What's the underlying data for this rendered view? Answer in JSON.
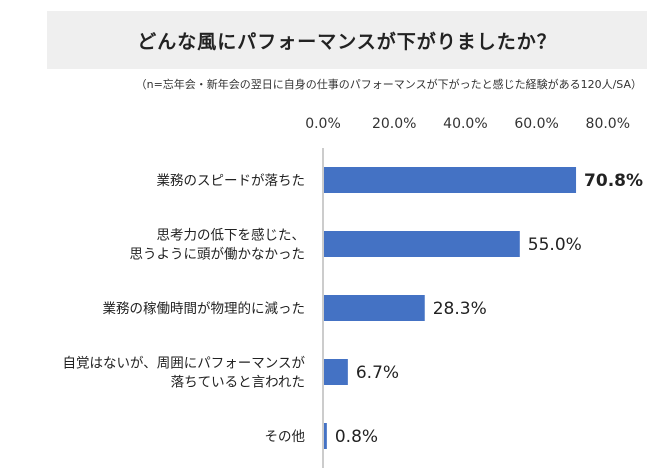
{
  "chart_data": {
    "type": "bar",
    "orientation": "horizontal",
    "title": "どんな風にパフォーマンスが下がりましたか？",
    "subtitle": "（n=忘年会・新年会の翌日に自身の仕事のパフォーマンスが下がったと感じた経験がある120人/SA）",
    "xlim": [
      0,
      80
    ],
    "xticks": [
      "0.0%",
      "20.0%",
      "40.0%",
      "60.0%",
      "80.0%"
    ],
    "categories": [
      [
        "業務のスピードが落ちた"
      ],
      [
        "思考力の低下を感じた、",
        "思うように頭が働かなかった"
      ],
      [
        "業務の稼働時間が物理的に減った"
      ],
      [
        "自覚はないが、周囲にパフォーマンスが",
        "落ちていると言われた"
      ],
      [
        "その他"
      ]
    ],
    "values": [
      70.8,
      55.0,
      28.3,
      6.7,
      0.8
    ],
    "value_labels": [
      "70.8%",
      "55.0%",
      "28.3%",
      "6.7%",
      "0.8%"
    ],
    "highlight_index": 0,
    "bar_color": "#4472c4",
    "grid": false,
    "legend": false
  }
}
